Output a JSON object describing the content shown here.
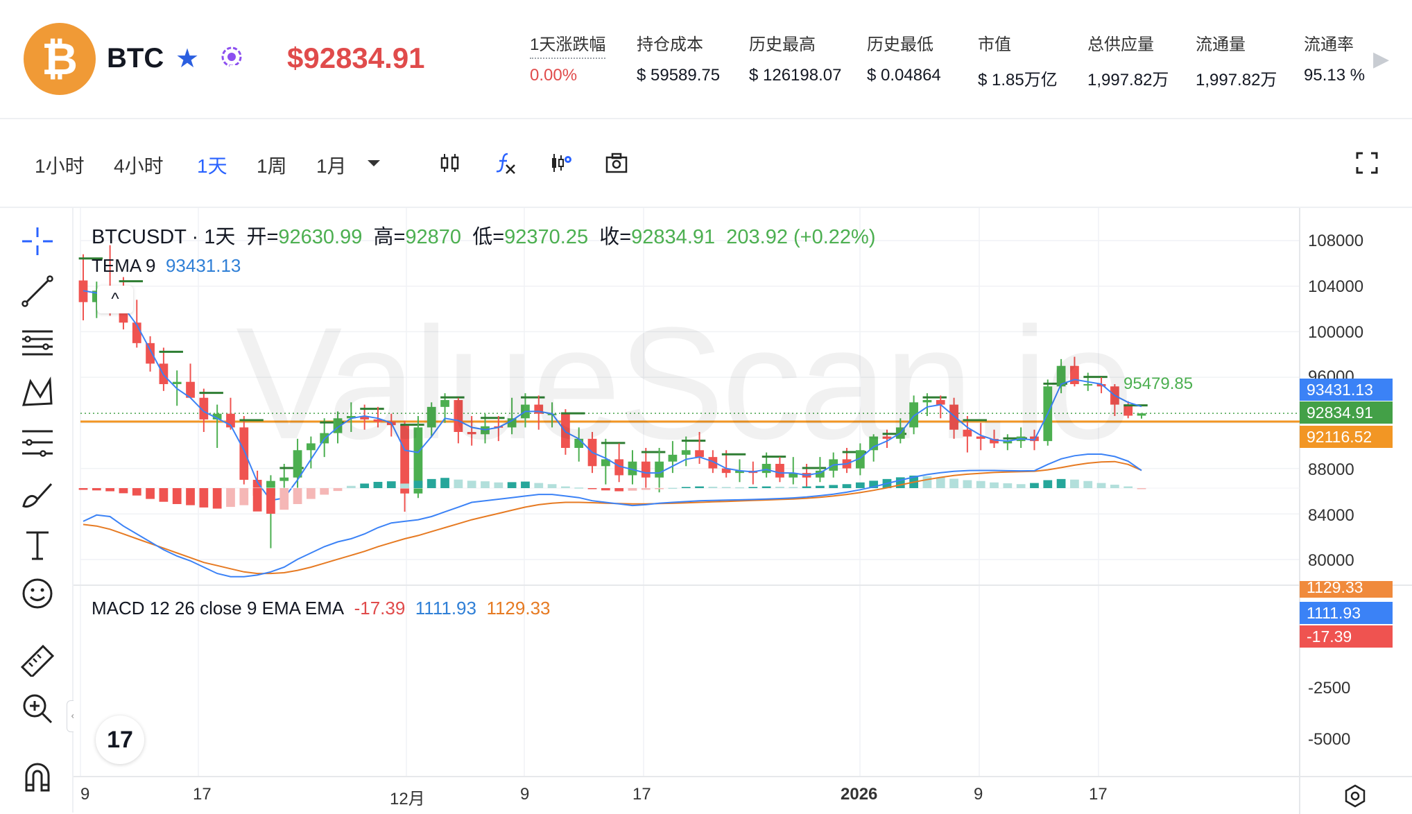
{
  "header": {
    "symbol": "BTC",
    "coin_glyph": "₿",
    "star_glyph": "★",
    "price": "$92834.91",
    "stats": [
      {
        "label": "1天涨跌幅",
        "value": "0.00%",
        "value_color": "#e04b4b"
      },
      {
        "label": "持仓成本",
        "value": "$ 59589.75"
      },
      {
        "label": "历史最高",
        "value": "$ 126198.07"
      },
      {
        "label": "历史最低",
        "value": "$ 0.04864"
      },
      {
        "label": "市值",
        "value": "$ 1.85万亿"
      },
      {
        "label": "总供应量",
        "value": "1,997.82万"
      },
      {
        "label": "流通量",
        "value": "1,997.82万"
      },
      {
        "label": "流通率",
        "value": "95.13 %"
      }
    ],
    "more_glyph": "▶",
    "icons": [
      "bitcoin-logo-icon",
      "star-icon",
      "ai-scan-icon",
      "chevron-right-icon"
    ]
  },
  "toolbar": {
    "timeframes": [
      "1小时",
      "4小时",
      "1天",
      "1周",
      "1月"
    ],
    "active_timeframe": "1天",
    "icons": [
      "dropdown-caret-icon",
      "candles-icon",
      "indicator-fx-icon",
      "chart-settings-icon",
      "snapshot-icon",
      "fullscreen-icon"
    ]
  },
  "left_tools": [
    "crosshair-icon",
    "trendline-icon",
    "fib-lines-icon",
    "pattern-icon",
    "projection-icon",
    "brush-icon",
    "text-icon",
    "emoji-icon",
    "ruler-icon",
    "zoom-in-icon",
    "magnet-icon"
  ],
  "legend": {
    "title": "BTCUSDT · 1天",
    "open_label": "开=",
    "open": "92630.99",
    "high_label": "高=",
    "high": "92870",
    "low_label": "低=",
    "low": "92370.25",
    "close_label": "收=",
    "close": "92834.91",
    "change": "203.92 (+0.22%)",
    "tema_label": "TEMA 9",
    "tema": "93431.13",
    "macd_label": "MACD 12 26 close 9 EMA EMA",
    "macd_hist": "-17.39",
    "macd_line": "1111.93",
    "macd_signal": "1129.33"
  },
  "watermark": "ValueScan.io",
  "tv_logo": "17",
  "collapse_glyph": "^",
  "sidechev_glyph": "‹",
  "price_tags": {
    "tema": {
      "text": "93431.13",
      "color": "#3b82f6"
    },
    "last": {
      "text": "92834.91",
      "color": "#43a047"
    },
    "line": {
      "text": "92116.52",
      "color": "#f29624"
    },
    "macd_signal": {
      "text": "1129.33",
      "color": "#f08a3c"
    },
    "macd_line": {
      "text": "1111.93",
      "color": "#3b82f6"
    },
    "macd_hist": {
      "text": "-17.39",
      "color": "#ef5350"
    }
  },
  "annotation": "95479.85",
  "chart_data": {
    "type": "candlestick",
    "y_axis_ticks": [
      "108000",
      "104000",
      "100000",
      "96000",
      "88000",
      "84000",
      "80000"
    ],
    "macd_axis_ticks": [
      "-2500",
      "-5000"
    ],
    "x_axis_ticks": [
      "9",
      "17",
      "12月",
      "9",
      "17",
      "2026",
      "9",
      "17"
    ],
    "horizontal_line": 92116.52,
    "candles": [
      [
        104500,
        106800,
        101000,
        102600
      ],
      [
        102600,
        104400,
        101200,
        103600
      ],
      [
        103600,
        107600,
        101400,
        102200
      ],
      [
        102200,
        104800,
        100200,
        100800
      ],
      [
        100800,
        102800,
        98600,
        99000
      ],
      [
        99000,
        99600,
        96500,
        97200
      ],
      [
        97200,
        98600,
        94800,
        95400
      ],
      [
        95400,
        96600,
        93500,
        95600
      ],
      [
        95600,
        97200,
        94200,
        94200
      ],
      [
        94200,
        95000,
        91200,
        92300
      ],
      [
        92300,
        93600,
        89800,
        92800
      ],
      [
        92800,
        94200,
        91400,
        91600
      ],
      [
        91600,
        92600,
        86600,
        87000
      ],
      [
        87000,
        87800,
        84300,
        85600
      ],
      [
        85600,
        87400,
        81000,
        86900
      ],
      [
        86900,
        88400,
        84600,
        87200
      ],
      [
        87200,
        90600,
        86200,
        89600
      ],
      [
        89600,
        90800,
        88000,
        90200
      ],
      [
        90200,
        92400,
        89000,
        91100
      ],
      [
        91100,
        93000,
        90200,
        92400
      ],
      [
        92400,
        93800,
        91200,
        92600
      ],
      [
        92600,
        93600,
        91400,
        92300
      ],
      [
        92300,
        93400,
        91600,
        92100
      ],
      [
        92100,
        92800,
        90800,
        91800
      ],
      [
        91800,
        92200,
        84200,
        85800
      ],
      [
        85800,
        92600,
        85400,
        91600
      ],
      [
        91600,
        93800,
        90800,
        93400
      ],
      [
        93400,
        94600,
        92000,
        94000
      ],
      [
        94000,
        94200,
        90200,
        91200
      ],
      [
        91200,
        92600,
        90000,
        91000
      ],
      [
        91000,
        92800,
        90200,
        91700
      ],
      [
        91700,
        92600,
        90400,
        91600
      ],
      [
        91600,
        94200,
        91000,
        92400
      ],
      [
        92400,
        94600,
        91600,
        93600
      ],
      [
        93600,
        94400,
        91400,
        92800
      ],
      [
        92800,
        93800,
        91600,
        92800
      ],
      [
        92800,
        93200,
        89200,
        89800
      ],
      [
        89800,
        91600,
        88600,
        90600
      ],
      [
        90600,
        91200,
        87600,
        88200
      ],
      [
        88200,
        90600,
        86600,
        88800
      ],
      [
        88800,
        90200,
        86800,
        87400
      ],
      [
        87400,
        89600,
        86600,
        88600
      ],
      [
        88600,
        89800,
        86200,
        87200
      ],
      [
        87200,
        89800,
        85900,
        88600
      ],
      [
        88600,
        90400,
        87600,
        89200
      ],
      [
        89200,
        90800,
        88200,
        89600
      ],
      [
        89600,
        91200,
        88400,
        89000
      ],
      [
        89000,
        89600,
        87600,
        88000
      ],
      [
        88000,
        89600,
        87200,
        87600
      ],
      [
        87600,
        88800,
        86800,
        87800
      ],
      [
        87800,
        88600,
        86600,
        87600
      ],
      [
        87600,
        89400,
        87200,
        88400
      ],
      [
        88400,
        89000,
        86800,
        87200
      ],
      [
        87200,
        89000,
        86600,
        87600
      ],
      [
        87600,
        88400,
        86400,
        87200
      ],
      [
        87200,
        89000,
        86800,
        87800
      ],
      [
        87800,
        89400,
        87200,
        88800
      ],
      [
        88800,
        89800,
        87600,
        88000
      ],
      [
        88000,
        90200,
        87400,
        89600
      ],
      [
        89600,
        91000,
        88600,
        90800
      ],
      [
        90800,
        91400,
        89800,
        90600
      ],
      [
        90600,
        92400,
        90200,
        91600
      ],
      [
        91600,
        94400,
        91000,
        93800
      ],
      [
        93800,
        94600,
        92600,
        94000
      ],
      [
        94000,
        94400,
        92400,
        93600
      ],
      [
        93600,
        94200,
        90600,
        91400
      ],
      [
        91400,
        92600,
        89400,
        90800
      ],
      [
        90800,
        92000,
        89600,
        90600
      ],
      [
        90600,
        91400,
        89800,
        90200
      ],
      [
        90200,
        91000,
        89600,
        90400
      ],
      [
        90400,
        91600,
        89800,
        90800
      ],
      [
        90800,
        91400,
        89600,
        90400
      ],
      [
        90400,
        95800,
        90000,
        95200
      ],
      [
        95200,
        97600,
        94600,
        97000
      ],
      [
        97000,
        97800,
        95200,
        95400
      ],
      [
        95400,
        96400,
        94800,
        95400
      ],
      [
        95400,
        96000,
        94600,
        95200
      ],
      [
        95200,
        95400,
        92600,
        93600
      ],
      [
        93600,
        93900,
        92400,
        92630
      ],
      [
        92630,
        92870,
        92370,
        92835
      ]
    ],
    "tema": [
      103600,
      103400,
      103000,
      102200,
      100600,
      98400,
      96200,
      95000,
      94200,
      93000,
      92400,
      91800,
      89600,
      86800,
      85200,
      85400,
      87000,
      88800,
      90600,
      91600,
      92400,
      92600,
      92400,
      92000,
      89600,
      89400,
      90800,
      92400,
      92200,
      91600,
      91400,
      91600,
      92200,
      93000,
      93000,
      92800,
      91200,
      90600,
      89400,
      88900,
      88200,
      87900,
      87600,
      87600,
      88200,
      88800,
      89000,
      88600,
      88000,
      87800,
      87700,
      87900,
      87600,
      87600,
      87400,
      87600,
      88300,
      88400,
      88900,
      89900,
      90400,
      91100,
      92600,
      93400,
      93600,
      92600,
      91600,
      90900,
      90500,
      90400,
      90600,
      90500,
      92800,
      95400,
      95800,
      95600,
      95400,
      94400,
      93800,
      93431
    ],
    "macd_hist": [
      -60,
      -80,
      -110,
      -180,
      -260,
      -380,
      -480,
      -560,
      -600,
      -680,
      -720,
      -660,
      -600,
      -820,
      -900,
      -760,
      -560,
      -380,
      -230,
      -100,
      80,
      160,
      220,
      240,
      160,
      260,
      320,
      360,
      300,
      260,
      240,
      200,
      210,
      230,
      180,
      140,
      60,
      20,
      -30,
      -80,
      -110,
      -90,
      -60,
      -30,
      10,
      40,
      60,
      50,
      40,
      30,
      40,
      60,
      50,
      40,
      60,
      80,
      110,
      140,
      200,
      260,
      320,
      380,
      440,
      420,
      380,
      330,
      280,
      250,
      200,
      170,
      140,
      180,
      280,
      320,
      300,
      250,
      180,
      120,
      60,
      -17.39
    ],
    "macd_line": [
      -2100,
      -1700,
      -1800,
      -2400,
      -2900,
      -3400,
      -3900,
      -4300,
      -4600,
      -5000,
      -5400,
      -5600,
      -5600,
      -5500,
      -5300,
      -5000,
      -4500,
      -4100,
      -3700,
      -3400,
      -3200,
      -2900,
      -2500,
      -2200,
      -2100,
      -2000,
      -1800,
      -1500,
      -1200,
      -900,
      -800,
      -700,
      -600,
      -500,
      -400,
      -400,
      -500,
      -600,
      -800,
      -900,
      -1000,
      -1100,
      -1050,
      -950,
      -900,
      -850,
      -800,
      -780,
      -760,
      -740,
      -720,
      -690,
      -660,
      -620,
      -560,
      -480,
      -380,
      -260,
      -100,
      80,
      300,
      500,
      700,
      860,
      980,
      1060,
      1110,
      1120,
      1120,
      1100,
      1090,
      1100,
      1500,
      1850,
      2050,
      2150,
      2150,
      2000,
      1700,
      1111.93
    ],
    "macd_signal": [
      -2300,
      -2400,
      -2600,
      -2900,
      -3200,
      -3500,
      -3800,
      -4100,
      -4400,
      -4700,
      -4900,
      -5100,
      -5300,
      -5400,
      -5400,
      -5350,
      -5200,
      -5000,
      -4750,
      -4500,
      -4250,
      -4000,
      -3700,
      -3450,
      -3200,
      -3000,
      -2750,
      -2500,
      -2250,
      -2000,
      -1800,
      -1600,
      -1400,
      -1200,
      -1050,
      -950,
      -900,
      -900,
      -920,
      -950,
      -980,
      -1000,
      -1000,
      -980,
      -960,
      -930,
      -900,
      -870,
      -840,
      -810,
      -780,
      -750,
      -720,
      -690,
      -640,
      -580,
      -500,
      -400,
      -280,
      -140,
      20,
      200,
      380,
      540,
      680,
      800,
      880,
      940,
      990,
      1020,
      1040,
      1060,
      1160,
      1300,
      1450,
      1580,
      1660,
      1680,
      1500,
      1129.33
    ]
  }
}
